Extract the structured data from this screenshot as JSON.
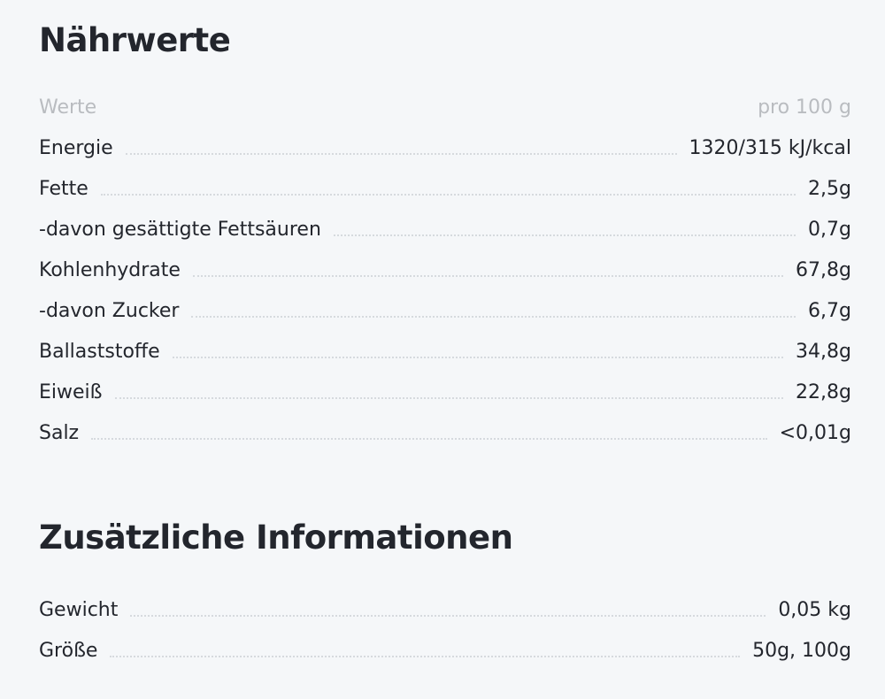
{
  "nutrition": {
    "title": "Nährwerte",
    "header": {
      "label": "Werte",
      "value": "pro 100 g"
    },
    "rows": [
      {
        "label": "Energie",
        "value": "1320/315 kJ/kcal"
      },
      {
        "label": "Fette",
        "value": "2,5g"
      },
      {
        "label": "-davon gesättigte Fettsäuren",
        "value": "0,7g"
      },
      {
        "label": "Kohlenhydrate",
        "value": "67,8g"
      },
      {
        "label": "-davon Zucker",
        "value": "6,7g"
      },
      {
        "label": "Ballaststoffe",
        "value": "34,8g"
      },
      {
        "label": "Eiweiß",
        "value": "22,8g"
      },
      {
        "label": "Salz",
        "value": "<0,01g"
      }
    ]
  },
  "additional": {
    "title": "Zusätzliche Informationen",
    "rows": [
      {
        "label": "Gewicht",
        "value": "0,05 kg"
      },
      {
        "label": "Größe",
        "value": "50g, 100g"
      }
    ]
  },
  "colors": {
    "background": "#f5f7f9",
    "text": "#23262d",
    "header_text": "#b9bcc0",
    "leader_dots": "#d6dade"
  }
}
